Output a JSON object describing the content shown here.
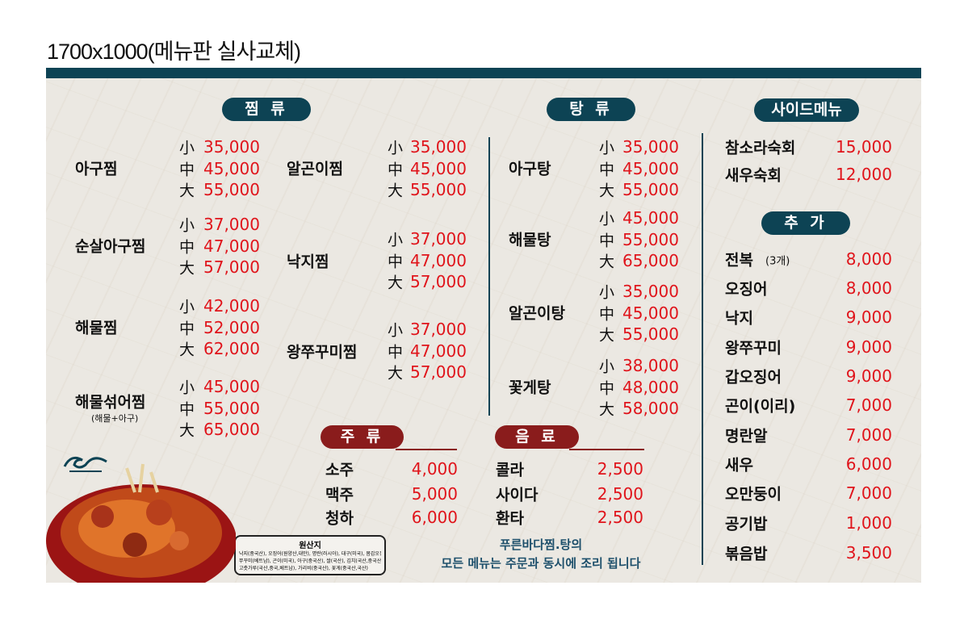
{
  "title": "1700x1000(메뉴판 실사교체)",
  "sizes": [
    "小",
    "中",
    "大"
  ],
  "sections": {
    "jjim": "찜 류",
    "tang": "탕 류",
    "side": "사이드메뉴",
    "extra": "추 가",
    "liquor": "주 류",
    "drinks": "음 료"
  },
  "jjim_col1": [
    {
      "name": "아구찜",
      "prices": [
        "35,000",
        "45,000",
        "55,000"
      ]
    },
    {
      "name": "순살아구찜",
      "prices": [
        "37,000",
        "47,000",
        "57,000"
      ]
    },
    {
      "name": "해물찜",
      "prices": [
        "42,000",
        "52,000",
        "62,000"
      ]
    },
    {
      "name": "해물섞어찜",
      "note": "(해물+아구)",
      "prices": [
        "45,000",
        "55,000",
        "65,000"
      ]
    }
  ],
  "jjim_col2": [
    {
      "name": "알곤이찜",
      "prices": [
        "35,000",
        "45,000",
        "55,000"
      ]
    },
    {
      "name": "낙지찜",
      "prices": [
        "37,000",
        "47,000",
        "57,000"
      ]
    },
    {
      "name": "왕쭈꾸미찜",
      "prices": [
        "37,000",
        "47,000",
        "57,000"
      ]
    }
  ],
  "tang": [
    {
      "name": "아구탕",
      "prices": [
        "35,000",
        "45,000",
        "55,000"
      ]
    },
    {
      "name": "해물탕",
      "prices": [
        "45,000",
        "55,000",
        "65,000"
      ]
    },
    {
      "name": "알곤이탕",
      "prices": [
        "35,000",
        "45,000",
        "55,000"
      ]
    },
    {
      "name": "꽃게탕",
      "prices": [
        "38,000",
        "48,000",
        "58,000"
      ]
    }
  ],
  "side": [
    {
      "name": "참소라숙회",
      "price": "15,000"
    },
    {
      "name": "새우숙회",
      "price": "12,000"
    }
  ],
  "extra": [
    {
      "name": "전복",
      "note": "(3개)",
      "price": "8,000"
    },
    {
      "name": "오징어",
      "price": "8,000"
    },
    {
      "name": "낙지",
      "price": "9,000"
    },
    {
      "name": "왕쭈꾸미",
      "price": "9,000"
    },
    {
      "name": "갑오징어",
      "price": "9,000"
    },
    {
      "name": "곤이(이리)",
      "price": "7,000"
    },
    {
      "name": "명란알",
      "price": "7,000"
    },
    {
      "name": "새우",
      "price": "6,000"
    },
    {
      "name": "오만둥이",
      "price": "7,000"
    },
    {
      "name": "공기밥",
      "price": "1,000"
    },
    {
      "name": "볶음밥",
      "price": "3,500"
    }
  ],
  "liquor": [
    {
      "name": "소주",
      "price": "4,000"
    },
    {
      "name": "맥주",
      "price": "5,000"
    },
    {
      "name": "청하",
      "price": "6,000"
    }
  ],
  "drinks": [
    {
      "name": "콜라",
      "price": "2,500"
    },
    {
      "name": "사이다",
      "price": "2,500"
    },
    {
      "name": "환타",
      "price": "2,500"
    }
  ],
  "footer": [
    "푸른바다찜.탕의",
    "모든 메뉴는 주문과 동시에 조리 됩니다"
  ],
  "origin": {
    "title": "원산지",
    "lines": [
      "낙지(중국산), 오징어(원양산,대만), 명란(러시아), 대구(미국), 몸갑오징어(태국)",
      "쭈꾸미(베트남), 곤이(미국), 아구(중국산), 쌀(국산), 김치(국산,중국산)",
      "고춧가루(국산,중국,베트남), 가리비(중국산), 꽃게(중국산,국산)"
    ]
  },
  "colors": {
    "teal": "#0d4354",
    "red_pill": "#8a1c1c",
    "price": "#e0141b"
  }
}
